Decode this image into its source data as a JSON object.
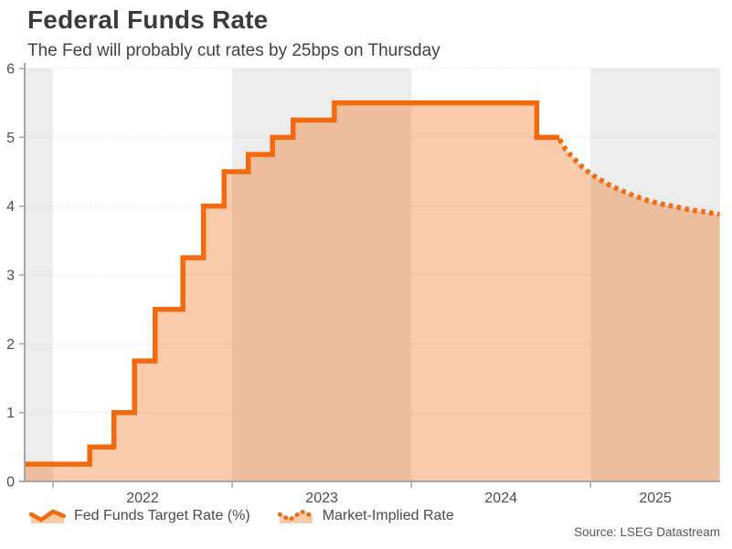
{
  "page": {
    "source": "Source: LSEG Datastream"
  },
  "colors": {
    "line": "#F26A0D",
    "fill": "rgba(242,106,13,0.35)",
    "fill_on_white": "#FACAA9",
    "band": "#ECECEC",
    "grid": "#DCDCDC",
    "axis": "#A6A6A6",
    "tick_text": "#4D4D4D"
  },
  "chart_data": {
    "type": "area",
    "title": "Federal Funds Rate",
    "subtitle": "The Fed will probably cut rates by 25bps on Thursday",
    "units": "percent",
    "x_domain": [
      2021.842,
      2025.723
    ],
    "ylim": [
      0,
      6
    ],
    "y_ticks": [
      0,
      1,
      2,
      3,
      4,
      5,
      6
    ],
    "x_tick_years": [
      2022,
      2023,
      2024,
      2025
    ],
    "shaded_years": [
      2021,
      2023,
      2025
    ],
    "grid": "dotted-horizontal",
    "legend_position": "bottom-left",
    "series": [
      {
        "name": "Fed Funds Target Rate (%)",
        "type": "step-line",
        "style": "solid",
        "points_format": "[decimal_year, rate_pct]",
        "points": [
          [
            2021.842,
            0.25
          ],
          [
            2022.205,
            0.5
          ],
          [
            2022.34,
            1.0
          ],
          [
            2022.455,
            1.75
          ],
          [
            2022.57,
            2.5
          ],
          [
            2022.725,
            3.25
          ],
          [
            2022.84,
            4.0
          ],
          [
            2022.955,
            4.5
          ],
          [
            2023.09,
            4.75
          ],
          [
            2023.225,
            5.0
          ],
          [
            2023.34,
            5.25
          ],
          [
            2023.57,
            5.5
          ],
          [
            2024.7,
            5.0
          ],
          [
            2024.827,
            5.0
          ]
        ]
      },
      {
        "name": "Market-Implied Rate",
        "type": "line",
        "style": "dotted",
        "points_format": "[decimal_year, rate_pct]",
        "points": [
          [
            2024.827,
            4.97
          ],
          [
            2024.862,
            4.82
          ],
          [
            2024.903,
            4.7
          ],
          [
            2024.954,
            4.57
          ],
          [
            2025.0,
            4.47
          ],
          [
            2025.056,
            4.38
          ],
          [
            2025.117,
            4.29
          ],
          [
            2025.178,
            4.22
          ],
          [
            2025.244,
            4.15
          ],
          [
            2025.321,
            4.08
          ],
          [
            2025.397,
            4.03
          ],
          [
            2025.473,
            3.99
          ],
          [
            2025.55,
            3.95
          ],
          [
            2025.626,
            3.92
          ],
          [
            2025.72,
            3.88
          ]
        ]
      }
    ]
  }
}
